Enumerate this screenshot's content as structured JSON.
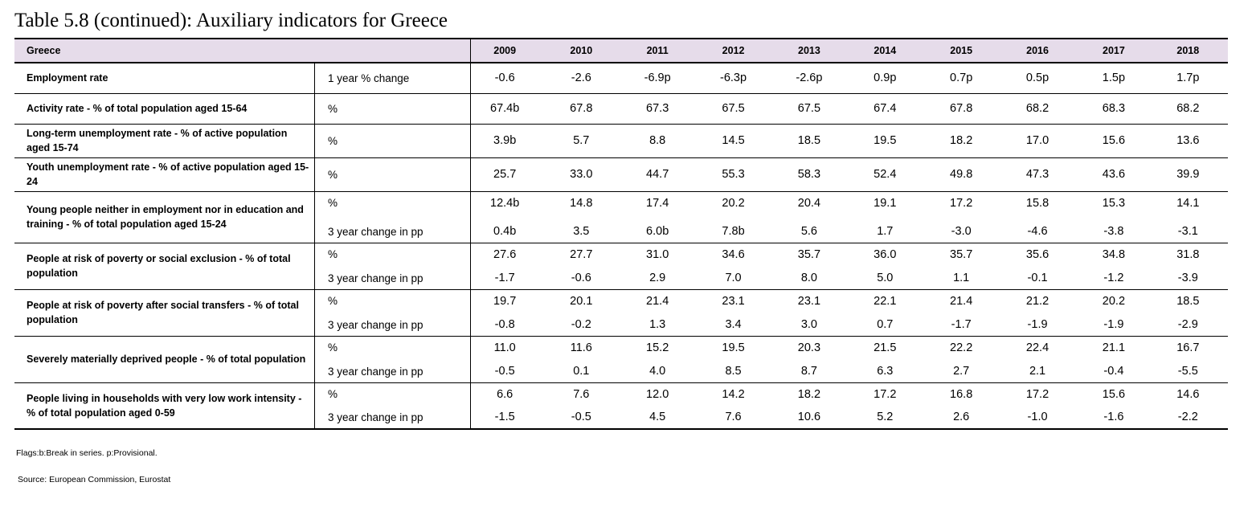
{
  "title": "Table 5.8 (continued): Auxiliary indicators for Greece",
  "header": {
    "country": "Greece",
    "years": [
      "2009",
      "2010",
      "2011",
      "2012",
      "2013",
      "2014",
      "2015",
      "2016",
      "2017",
      "2018"
    ]
  },
  "rows": [
    {
      "label": "Employment rate",
      "lines": [
        {
          "unit": "1 year % change",
          "values": [
            "-0.6",
            "-2.6",
            "-6.9p",
            "-6.3p",
            "-2.6p",
            "0.9p",
            "0.7p",
            "0.5p",
            "1.5p",
            "1.7p"
          ]
        }
      ]
    },
    {
      "label": "Activity rate - % of total population aged 15-64",
      "lines": [
        {
          "unit": "%",
          "values": [
            "67.4b",
            "67.8",
            "67.3",
            "67.5",
            "67.5",
            "67.4",
            "67.8",
            "68.2",
            "68.3",
            "68.2"
          ]
        }
      ]
    },
    {
      "label": "Long-term unemployment rate -  % of active population aged 15-74",
      "lines": [
        {
          "unit": "%",
          "values": [
            "3.9b",
            "5.7",
            "8.8",
            "14.5",
            "18.5",
            "19.5",
            "18.2",
            "17.0",
            "15.6",
            "13.6"
          ]
        }
      ]
    },
    {
      "label": "Youth unemployment rate -  % of active population aged 15-24",
      "lines": [
        {
          "unit": "%",
          "values": [
            "25.7",
            "33.0",
            "44.7",
            "55.3",
            "58.3",
            "52.4",
            "49.8",
            "47.3",
            "43.6",
            "39.9"
          ]
        }
      ]
    },
    {
      "label": "Young people neither in employment nor in education and training - % of total population aged 15-24",
      "lines": [
        {
          "unit": "%",
          "values": [
            "12.4b",
            "14.8",
            "17.4",
            "20.2",
            "20.4",
            "19.1",
            "17.2",
            "15.8",
            "15.3",
            "14.1"
          ]
        },
        {
          "unit": "3 year change in pp",
          "values": [
            "0.4b",
            "3.5",
            "6.0b",
            "7.8b",
            "5.6",
            "1.7",
            "-3.0",
            "-4.6",
            "-3.8",
            "-3.1"
          ]
        }
      ]
    },
    {
      "label": "People at risk of poverty or social exclusion - % of total population",
      "lines": [
        {
          "unit": "%",
          "values": [
            "27.6",
            "27.7",
            "31.0",
            "34.6",
            "35.7",
            "36.0",
            "35.7",
            "35.6",
            "34.8",
            "31.8"
          ]
        },
        {
          "unit": "3 year change in pp",
          "values": [
            "-1.7",
            "-0.6",
            "2.9",
            "7.0",
            "8.0",
            "5.0",
            "1.1",
            "-0.1",
            "-1.2",
            "-3.9"
          ]
        }
      ]
    },
    {
      "label": "People at risk of poverty after social transfers - % of total population",
      "lines": [
        {
          "unit": "%",
          "values": [
            "19.7",
            "20.1",
            "21.4",
            "23.1",
            "23.1",
            "22.1",
            "21.4",
            "21.2",
            "20.2",
            "18.5"
          ]
        },
        {
          "unit": "3 year change in pp",
          "values": [
            "-0.8",
            "-0.2",
            "1.3",
            "3.4",
            "3.0",
            "0.7",
            "-1.7",
            "-1.9",
            "-1.9",
            "-2.9"
          ]
        }
      ]
    },
    {
      "label": "Severely materially deprived people - % of total population",
      "lines": [
        {
          "unit": "%",
          "values": [
            "11.0",
            "11.6",
            "15.2",
            "19.5",
            "20.3",
            "21.5",
            "22.2",
            "22.4",
            "21.1",
            "16.7"
          ]
        },
        {
          "unit": "3 year change in pp",
          "values": [
            "-0.5",
            "0.1",
            "4.0",
            "8.5",
            "8.7",
            "6.3",
            "2.7",
            "2.1",
            "-0.4",
            "-5.5"
          ]
        }
      ]
    },
    {
      "label": "People living in households with very low work intensity - % of total population aged 0-59",
      "lines": [
        {
          "unit": "%",
          "values": [
            "6.6",
            "7.6",
            "12.0",
            "14.2",
            "18.2",
            "17.2",
            "16.8",
            "17.2",
            "15.6",
            "14.6"
          ]
        },
        {
          "unit": "3 year change in pp",
          "values": [
            "-1.5",
            "-0.5",
            "4.5",
            "7.6",
            "10.6",
            "5.2",
            "2.6",
            "-1.0",
            "-1.6",
            "-2.2"
          ]
        }
      ]
    }
  ],
  "footnote": "Flags:b:Break in series. p:Provisional.",
  "source": "Source: European Commission, Eurostat"
}
